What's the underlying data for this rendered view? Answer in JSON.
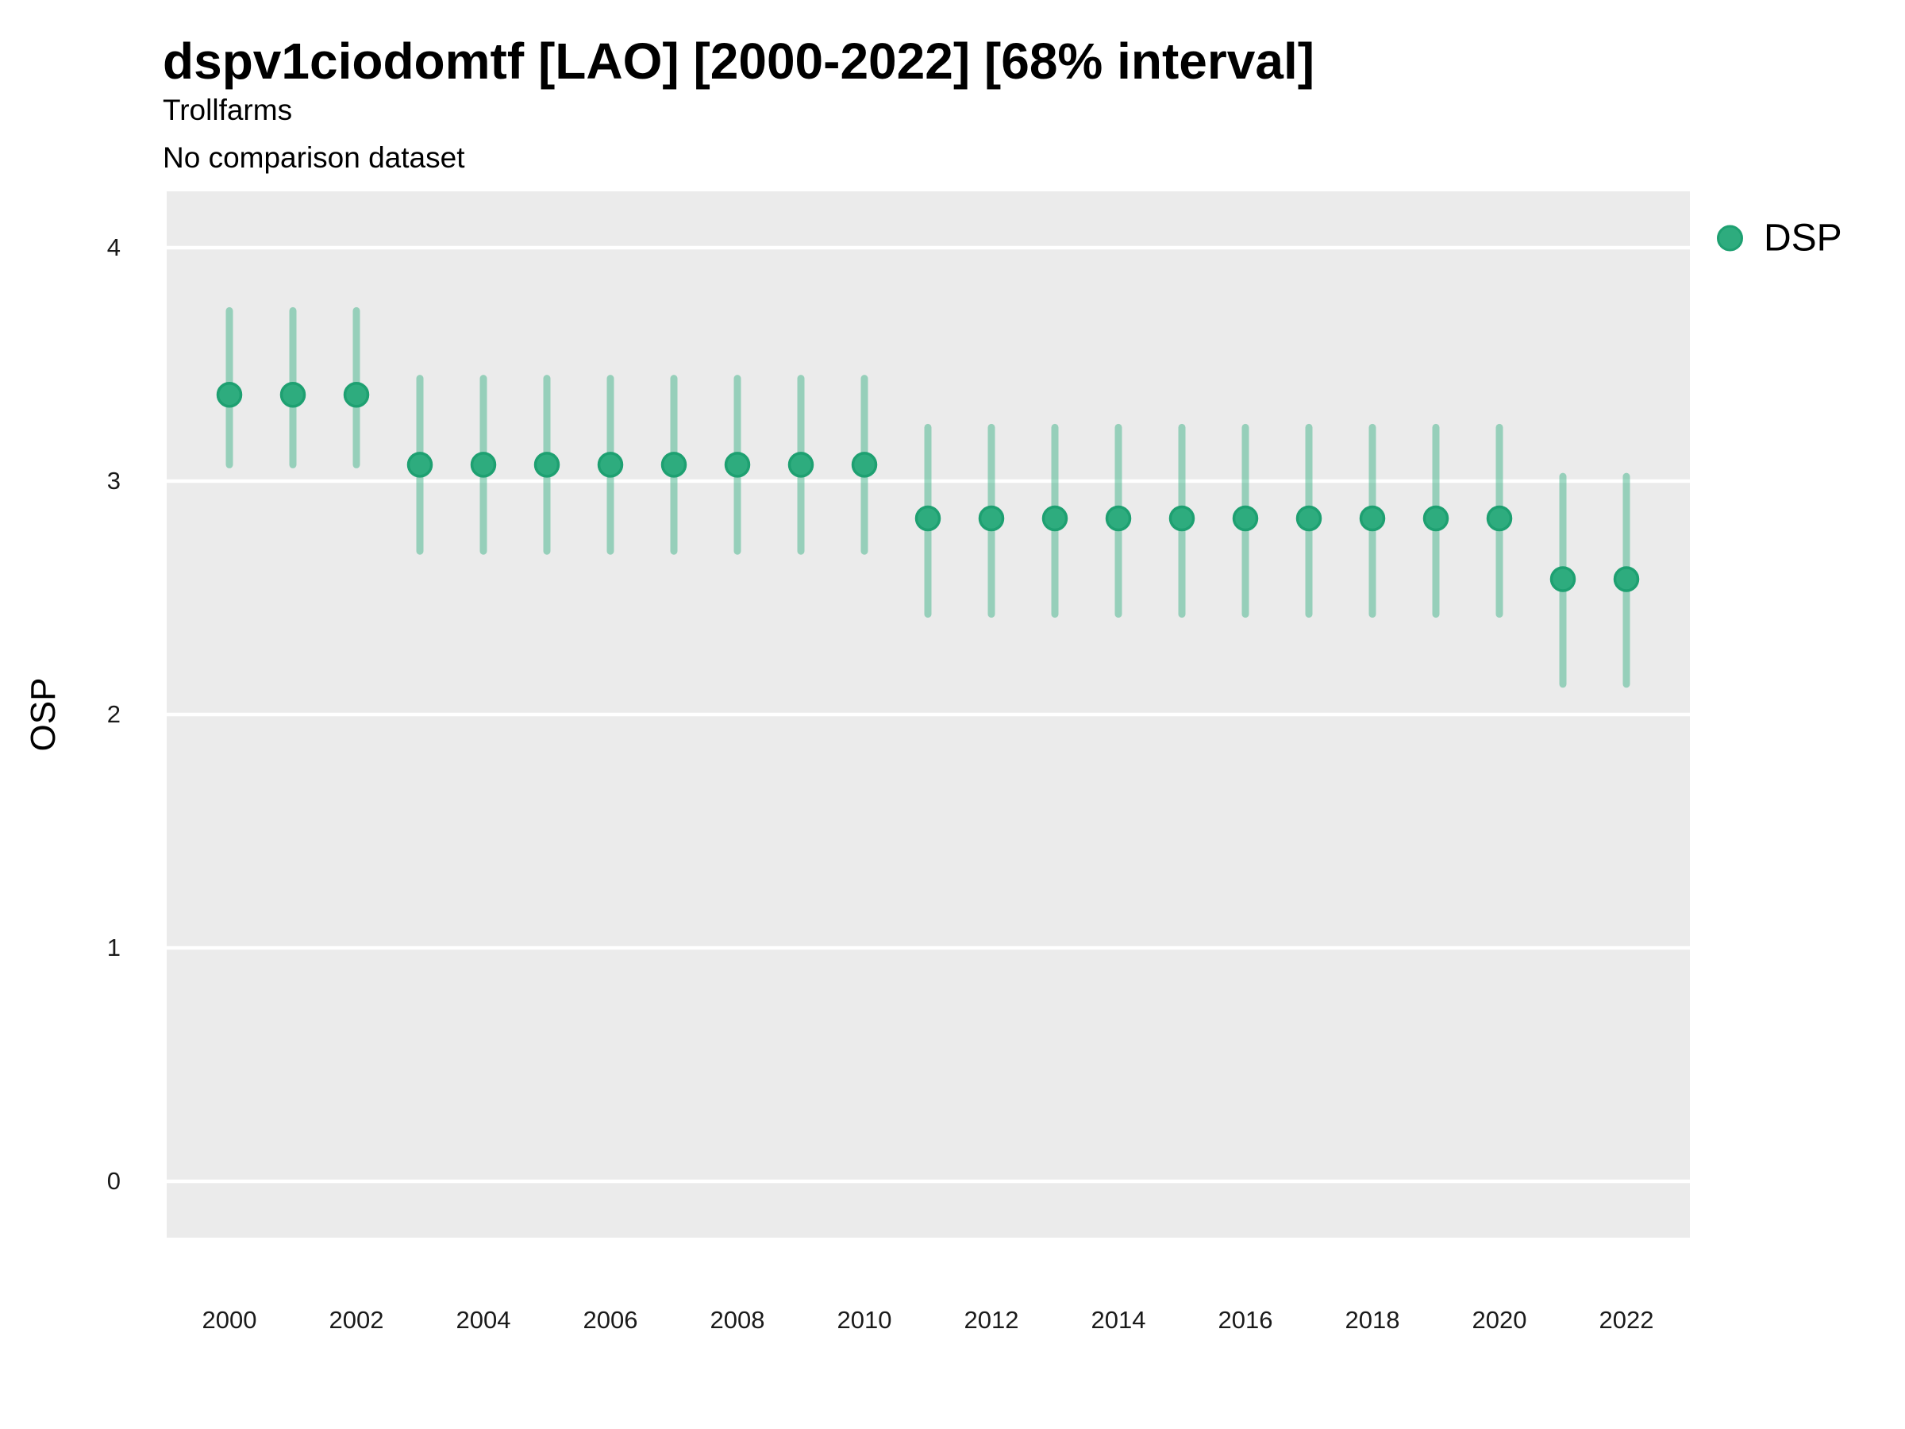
{
  "chart_data": {
    "type": "scatter",
    "variant": "pointrange",
    "title": "dspv1ciodomtf [LAO] [2000-2022] [68% interval]",
    "subtitle": "Trollfarms",
    "note": "No comparison dataset",
    "xlabel": "",
    "ylabel": "OSP",
    "interval_level": "68%",
    "legend_position": "right",
    "grid": "horizontal-major-only",
    "ylim": [
      -0.25,
      4.25
    ],
    "xlim": [
      1999,
      2023
    ],
    "yticks": [
      0,
      1,
      2,
      3,
      4
    ],
    "xticks": [
      2000,
      2002,
      2004,
      2006,
      2008,
      2010,
      2012,
      2014,
      2016,
      2018,
      2020,
      2022
    ],
    "series": [
      {
        "name": "DSP",
        "points": [
          {
            "x": 2000,
            "y": 3.37,
            "lo": 3.07,
            "hi": 3.73
          },
          {
            "x": 2001,
            "y": 3.37,
            "lo": 3.07,
            "hi": 3.73
          },
          {
            "x": 2002,
            "y": 3.37,
            "lo": 3.07,
            "hi": 3.73
          },
          {
            "x": 2003,
            "y": 3.07,
            "lo": 2.7,
            "hi": 3.44
          },
          {
            "x": 2004,
            "y": 3.07,
            "lo": 2.7,
            "hi": 3.44
          },
          {
            "x": 2005,
            "y": 3.07,
            "lo": 2.7,
            "hi": 3.44
          },
          {
            "x": 2006,
            "y": 3.07,
            "lo": 2.7,
            "hi": 3.44
          },
          {
            "x": 2007,
            "y": 3.07,
            "lo": 2.7,
            "hi": 3.44
          },
          {
            "x": 2008,
            "y": 3.07,
            "lo": 2.7,
            "hi": 3.44
          },
          {
            "x": 2009,
            "y": 3.07,
            "lo": 2.7,
            "hi": 3.44
          },
          {
            "x": 2010,
            "y": 3.07,
            "lo": 2.7,
            "hi": 3.44
          },
          {
            "x": 2011,
            "y": 2.84,
            "lo": 2.43,
            "hi": 3.23
          },
          {
            "x": 2012,
            "y": 2.84,
            "lo": 2.43,
            "hi": 3.23
          },
          {
            "x": 2013,
            "y": 2.84,
            "lo": 2.43,
            "hi": 3.23
          },
          {
            "x": 2014,
            "y": 2.84,
            "lo": 2.43,
            "hi": 3.23
          },
          {
            "x": 2015,
            "y": 2.84,
            "lo": 2.43,
            "hi": 3.23
          },
          {
            "x": 2016,
            "y": 2.84,
            "lo": 2.43,
            "hi": 3.23
          },
          {
            "x": 2017,
            "y": 2.84,
            "lo": 2.43,
            "hi": 3.23
          },
          {
            "x": 2018,
            "y": 2.84,
            "lo": 2.43,
            "hi": 3.23
          },
          {
            "x": 2019,
            "y": 2.84,
            "lo": 2.43,
            "hi": 3.23
          },
          {
            "x": 2020,
            "y": 2.84,
            "lo": 2.43,
            "hi": 3.23
          },
          {
            "x": 2021,
            "y": 2.58,
            "lo": 2.13,
            "hi": 3.02
          },
          {
            "x": 2022,
            "y": 2.58,
            "lo": 2.13,
            "hi": 3.02
          }
        ]
      }
    ],
    "colors": {
      "point_fill": "#2EAC7E",
      "point_stroke": "#1EA071",
      "interval": "rgba(46,172,126,0.45)",
      "panel_background": "#EBEBEB",
      "gridline": "#FFFFFF"
    }
  },
  "legend": {
    "items": [
      {
        "label": "DSP",
        "color": "#2EAC7E"
      }
    ]
  }
}
